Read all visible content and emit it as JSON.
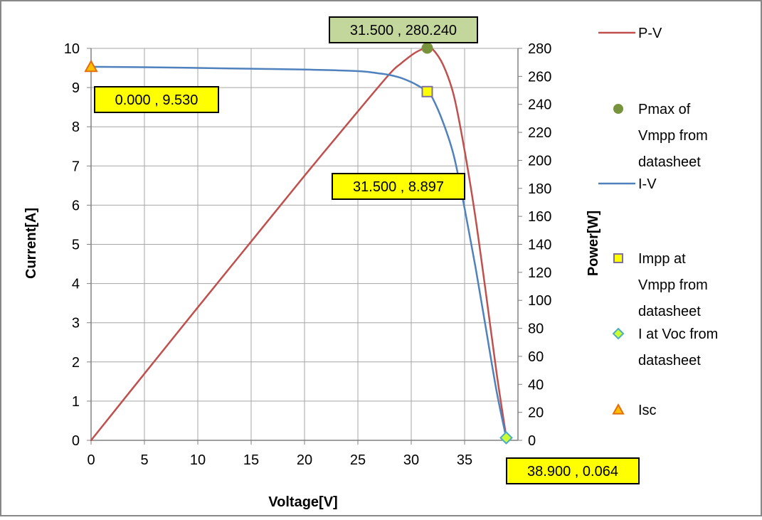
{
  "chart_data": {
    "type": "line",
    "xlabel": "Voltage[V]",
    "ylabel_left": "Current[A]",
    "ylabel_right": "Power[W]",
    "xlim": [
      0,
      40
    ],
    "ylim_left": [
      0,
      10
    ],
    "ylim_right": [
      0,
      280
    ],
    "x_ticks": [
      0,
      5,
      10,
      15,
      20,
      25,
      30,
      35
    ],
    "y_left_ticks": [
      0,
      1,
      2,
      3,
      4,
      5,
      6,
      7,
      8,
      9,
      10
    ],
    "y_right_ticks": [
      0,
      20,
      40,
      60,
      80,
      100,
      120,
      140,
      160,
      180,
      200,
      220,
      240,
      260,
      280
    ],
    "grid": true,
    "legend_position": "right",
    "series": [
      {
        "name": "P-V",
        "axis": "right",
        "color": "#c0504d",
        "x": [
          0,
          5,
          10,
          15,
          20,
          25,
          28,
          29,
          30,
          30.5,
          31,
          31.5,
          32,
          33,
          34,
          35,
          36,
          37,
          38,
          38.9
        ],
        "y": [
          0,
          47.6,
          95,
          142,
          189,
          235,
          262,
          269,
          275,
          277.5,
          279.3,
          280.2,
          279.5,
          268,
          246,
          207,
          160,
          105,
          48,
          2.5
        ]
      },
      {
        "name": "I-V",
        "axis": "left",
        "color": "#4f81bd",
        "x": [
          0,
          5,
          10,
          15,
          20,
          25,
          27,
          28,
          29,
          30,
          30.5,
          31,
          31.5,
          32,
          33,
          34,
          35,
          36,
          37,
          38,
          38.9
        ],
        "y": [
          9.53,
          9.52,
          9.5,
          9.48,
          9.46,
          9.42,
          9.36,
          9.32,
          9.25,
          9.14,
          9.07,
          8.99,
          8.897,
          8.73,
          8.1,
          7.25,
          5.92,
          4.45,
          2.85,
          1.25,
          0.064
        ]
      }
    ],
    "markers": [
      {
        "name": "Pmax of Vmpp from datasheet",
        "axis": "right",
        "x": 31.5,
        "y": 280.24,
        "shape": "circle",
        "color": "#77933c"
      },
      {
        "name": "Impp at Vmpp from datasheet",
        "axis": "left",
        "x": 31.5,
        "y": 8.897,
        "shape": "square",
        "color": "#ffff00",
        "stroke": "#7f6fa0"
      },
      {
        "name": "I at Voc from datasheet",
        "axis": "left",
        "x": 38.9,
        "y": 0.064,
        "shape": "diamond",
        "color": "#ccff33",
        "stroke": "#4bacc6"
      },
      {
        "name": "Isc",
        "axis": "left",
        "x": 0,
        "y": 9.53,
        "shape": "triangle",
        "color": "#ffc000",
        "stroke": "#e46c0a"
      }
    ],
    "annotations": [
      {
        "text": "31.500 , 280.240",
        "bg": "#c3d69b"
      },
      {
        "text": "0.000 , 9.530",
        "bg": "#ffff00"
      },
      {
        "text": "31.500 , 8.897",
        "bg": "#ffff00"
      },
      {
        "text": "38.900 , 0.064",
        "bg": "#ffff00"
      }
    ],
    "legend": [
      {
        "lines": [
          "P-V"
        ],
        "type": "line",
        "color": "#c0504d"
      },
      {
        "lines": [
          "Pmax of",
          "Vmpp from",
          "datasheet"
        ],
        "type": "circle",
        "color": "#77933c"
      },
      {
        "lines": [
          "I-V"
        ],
        "type": "line",
        "color": "#4f81bd"
      },
      {
        "lines": [
          "Impp at",
          "Vmpp from",
          "datasheet"
        ],
        "type": "square",
        "color": "#ffff00",
        "stroke": "#7f6fa0"
      },
      {
        "lines": [
          "I at Voc from",
          "datasheet"
        ],
        "type": "diamond",
        "color": "#ccff33",
        "stroke": "#4bacc6"
      },
      {
        "lines": [
          "Isc"
        ],
        "type": "triangle",
        "color": "#ffc000",
        "stroke": "#e46c0a"
      }
    ]
  }
}
